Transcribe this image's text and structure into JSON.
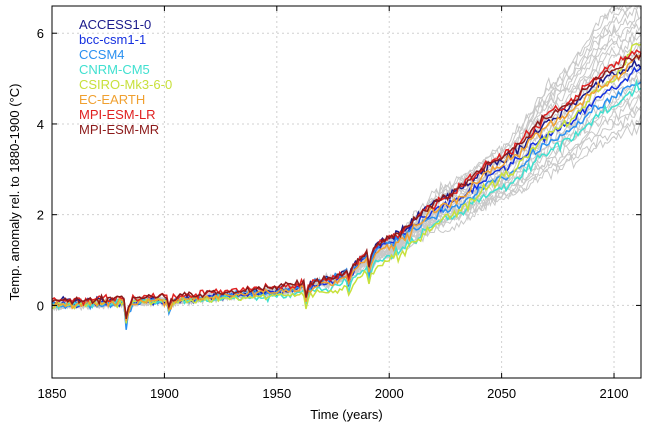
{
  "chart_data": {
    "type": "line",
    "title": "",
    "xlabel": "Time (years)",
    "ylabel": "Temp. anomaly rel. to 1880-1900 (°C)",
    "xlim": [
      1850,
      2112
    ],
    "ylim": [
      -1.6,
      6.6
    ],
    "xticks": [
      "1850",
      "1900",
      "1950",
      "2000",
      "2050",
      "2100"
    ],
    "yticks": [
      "0",
      "2",
      "4",
      "6"
    ],
    "grid": true,
    "legend_position": "top-left",
    "background_series": {
      "count": 24,
      "color": "#c8c8c8",
      "spread_2100": [
        3.7,
        6.6
      ]
    },
    "series": [
      {
        "name": "ACCESS1-0",
        "color": "#1a1a8c",
        "values_anchor": {
          "1850": 0.1,
          "1900": 0.1,
          "1950": 0.3,
          "1975": 0.6,
          "2000": 1.5,
          "2025": 2.4,
          "2050": 3.2,
          "2075": 4.2,
          "2100": 5.1,
          "2110": 5.3
        }
      },
      {
        "name": "bcc-csm1-1",
        "color": "#1530e0",
        "values_anchor": {
          "1850": 0.0,
          "1900": 0.1,
          "1950": 0.3,
          "1975": 0.5,
          "2000": 1.4,
          "2025": 2.2,
          "2050": 3.0,
          "2075": 3.9,
          "2100": 4.8,
          "2110": 5.2
        }
      },
      {
        "name": "CCSM4",
        "color": "#2a90f0",
        "values_anchor": {
          "1850": 0.0,
          "1900": 0.1,
          "1950": 0.3,
          "1975": 0.6,
          "2000": 1.4,
          "2025": 2.1,
          "2050": 2.8,
          "2075": 3.7,
          "2100": 4.6,
          "2110": 4.9
        }
      },
      {
        "name": "CNRM-CM5",
        "color": "#40e0d0",
        "values_anchor": {
          "1850": 0.0,
          "1900": 0.1,
          "1950": 0.2,
          "1975": 0.4,
          "2000": 1.1,
          "2025": 1.9,
          "2050": 2.6,
          "2075": 3.5,
          "2100": 4.4,
          "2110": 4.8
        }
      },
      {
        "name": "CSIRO-Mk3-6-0",
        "color": "#c8e03c",
        "values_anchor": {
          "1850": 0.0,
          "1900": 0.1,
          "1950": 0.2,
          "1975": 0.3,
          "2000": 1.0,
          "2025": 1.9,
          "2050": 2.8,
          "2075": 3.9,
          "2100": 5.0,
          "2110": 5.8
        }
      },
      {
        "name": "EC-EARTH",
        "color": "#f0a030",
        "values_anchor": {
          "1850": 0.0,
          "1900": 0.1,
          "1950": 0.3,
          "1975": 0.5,
          "2000": 1.3,
          "2025": 2.2,
          "2050": 3.1,
          "2075": 4.1,
          "2100": 5.0,
          "2110": 5.5
        }
      },
      {
        "name": "MPI-ESM-LR",
        "color": "#e02020",
        "values_anchor": {
          "1850": 0.1,
          "1900": 0.2,
          "1950": 0.4,
          "1975": 0.6,
          "2000": 1.5,
          "2025": 2.4,
          "2050": 3.3,
          "2075": 4.3,
          "2100": 5.3,
          "2110": 5.6
        }
      },
      {
        "name": "MPI-ESM-MR",
        "color": "#8c1a1a",
        "values_anchor": {
          "1850": 0.1,
          "1900": 0.2,
          "1950": 0.4,
          "1975": 0.6,
          "2000": 1.5,
          "2025": 2.4,
          "2050": 3.3,
          "2075": 4.3,
          "2100": 5.2,
          "2110": 5.5
        }
      }
    ]
  }
}
